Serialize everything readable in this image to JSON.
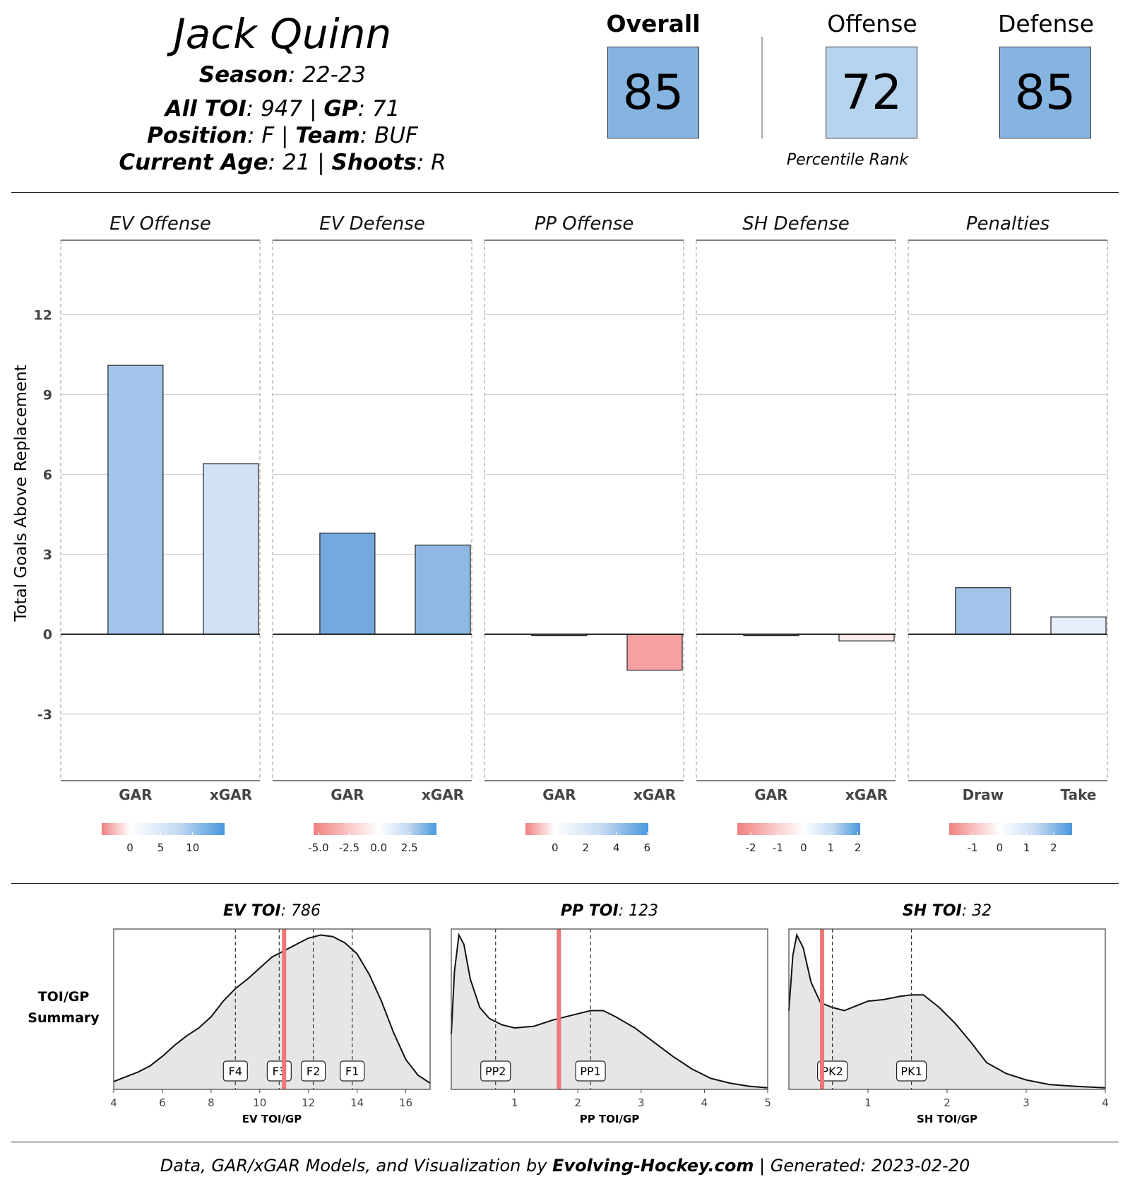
{
  "player": {
    "name": "Jack Quinn",
    "season_label": "Season",
    "season": ": 22-23",
    "toi_label": "All TOI",
    "toi": ": 947 | ",
    "gp_label": "GP",
    "gp": ": 71",
    "position_label": "Position",
    "position": ": F | ",
    "team_label": "Team",
    "team": ": BUF",
    "age_label": "Current Age",
    "age": ": 21 | ",
    "shoots_label": "Shoots",
    "shoots": ": R"
  },
  "ratings": {
    "overall": {
      "label": "Overall",
      "value": "85",
      "color": "#86b4e0"
    },
    "offense": {
      "label": "Offense",
      "value": "72",
      "color": "#b6d4ee"
    },
    "defense": {
      "label": "Defense",
      "value": "85",
      "color": "#86b4e0"
    },
    "note": "Percentile Rank"
  },
  "ylabel": "Total Goals Above Replacement",
  "toi_summary_label": "TOI/GP Summary",
  "footer": {
    "prefix": "Data, GAR/xGAR Models, and Visualization by ",
    "site": "Evolving-Hockey.com",
    "suffix": "  | Generated: 2023-02-20"
  },
  "chart_data": [
    {
      "type": "bar",
      "ylim": [
        -5.5,
        14.8
      ],
      "yticks": [
        -3,
        0,
        3,
        6,
        9,
        12
      ],
      "grid": true,
      "panels": [
        {
          "title": "EV Offense",
          "categories": [
            "GAR",
            "xGAR"
          ],
          "values": [
            10.1,
            6.4
          ],
          "colors": [
            "#a2c4ea",
            "#d2e2f5"
          ],
          "scale_ticks": [
            "0",
            "5",
            "10"
          ],
          "scale_tick_fracs": [
            0.23,
            0.48,
            0.74
          ],
          "scale_zero": 0.23
        },
        {
          "title": "EV Defense",
          "categories": [
            "GAR",
            "xGAR"
          ],
          "values": [
            3.8,
            3.35
          ],
          "colors": [
            "#75a9de",
            "#8fb8e4"
          ],
          "scale_ticks": [
            "-5.0",
            "-2.5",
            "0.0",
            "2.5"
          ],
          "scale_tick_fracs": [
            0.04,
            0.29,
            0.53,
            0.78
          ],
          "scale_zero": 0.53
        },
        {
          "title": "PP Offense",
          "categories": [
            "GAR",
            "xGAR"
          ],
          "values": [
            -0.05,
            -1.35
          ],
          "colors": [
            "#fff7f7",
            "#f6a1a1"
          ],
          "scale_ticks": [
            "0",
            "2",
            "4",
            "6"
          ],
          "scale_tick_fracs": [
            0.24,
            0.49,
            0.74,
            0.99
          ],
          "scale_zero": 0.24
        },
        {
          "title": "SH Defense",
          "categories": [
            "GAR",
            "xGAR"
          ],
          "values": [
            -0.05,
            -0.25
          ],
          "colors": [
            "#fff8f8",
            "#fdeaea"
          ],
          "scale_ticks": [
            "-2",
            "-1",
            "0",
            "1",
            "2"
          ],
          "scale_tick_fracs": [
            0.11,
            0.33,
            0.54,
            0.76,
            0.98
          ],
          "scale_zero": 0.54
        },
        {
          "title": "Penalties",
          "categories": [
            "Draw",
            "Take"
          ],
          "values": [
            1.75,
            0.65
          ],
          "colors": [
            "#a2c4ea",
            "#e6eefb"
          ],
          "scale_ticks": [
            "-1",
            "0",
            "1",
            "2"
          ],
          "scale_tick_fracs": [
            0.19,
            0.41,
            0.63,
            0.85
          ],
          "scale_zero": 0.41
        }
      ]
    },
    {
      "type": "area",
      "panels": [
        {
          "title_bold": "EV TOI",
          "title_rest": ": 786",
          "xlabel": "EV TOI/GP",
          "xlim": [
            4,
            17
          ],
          "xticks": [
            4,
            6,
            8,
            10,
            12,
            14,
            16
          ],
          "density_x": [
            4,
            4.5,
            5,
            5.5,
            6,
            6.5,
            7,
            7.5,
            8,
            8.5,
            9,
            9.5,
            10,
            10.5,
            11,
            11.5,
            12,
            12.5,
            13,
            13.5,
            14,
            14.5,
            15,
            15.5,
            16,
            16.5,
            17
          ],
          "density_y": [
            0.05,
            0.08,
            0.11,
            0.15,
            0.21,
            0.28,
            0.34,
            0.39,
            0.46,
            0.56,
            0.64,
            0.7,
            0.77,
            0.84,
            0.88,
            0.92,
            0.96,
            0.98,
            0.97,
            0.93,
            0.86,
            0.73,
            0.56,
            0.36,
            0.19,
            0.09,
            0.04
          ],
          "ylim": [
            0,
            1
          ],
          "markers": [
            {
              "label": "F4",
              "x": 9
            },
            {
              "label": "F3",
              "x": 10.8
            },
            {
              "label": "F2",
              "x": 12.2
            },
            {
              "label": "F1",
              "x": 13.8
            }
          ],
          "player_value": 11
        },
        {
          "title_bold": "PP TOI",
          "title_rest": ": 123",
          "xlabel": "PP TOI/GP",
          "xlim": [
            0,
            5
          ],
          "xticks": [
            1,
            2,
            3,
            4,
            5
          ],
          "density_x": [
            0,
            0.05,
            0.12,
            0.2,
            0.3,
            0.45,
            0.6,
            0.8,
            1.0,
            1.3,
            1.6,
            1.9,
            2.2,
            2.4,
            2.6,
            2.9,
            3.2,
            3.5,
            3.8,
            4.1,
            4.4,
            4.7,
            5
          ],
          "density_y": [
            0.35,
            0.75,
            0.98,
            0.92,
            0.7,
            0.52,
            0.45,
            0.41,
            0.39,
            0.4,
            0.44,
            0.47,
            0.5,
            0.5,
            0.46,
            0.39,
            0.3,
            0.21,
            0.13,
            0.07,
            0.04,
            0.02,
            0.01
          ],
          "ylim": [
            0,
            1
          ],
          "markers": [
            {
              "label": "PP2",
              "x": 0.7
            },
            {
              "label": "PP1",
              "x": 2.2
            }
          ],
          "player_value": 1.7
        },
        {
          "title_bold": "SH TOI",
          "title_rest": ": 32",
          "xlabel": "SH TOI/GP",
          "xlim": [
            0,
            4
          ],
          "xticks": [
            1,
            2,
            3,
            4
          ],
          "density_x": [
            0,
            0.05,
            0.1,
            0.18,
            0.28,
            0.4,
            0.55,
            0.7,
            0.85,
            1.0,
            1.2,
            1.4,
            1.55,
            1.7,
            1.9,
            2.1,
            2.3,
            2.5,
            2.75,
            3.0,
            3.3,
            3.6,
            4
          ],
          "density_y": [
            0.5,
            0.85,
            0.98,
            0.9,
            0.68,
            0.55,
            0.52,
            0.5,
            0.53,
            0.56,
            0.57,
            0.59,
            0.6,
            0.6,
            0.52,
            0.42,
            0.3,
            0.17,
            0.1,
            0.06,
            0.03,
            0.02,
            0.01
          ],
          "ylim": [
            0,
            1
          ],
          "markers": [
            {
              "label": "PK2",
              "x": 0.55
            },
            {
              "label": "PK1",
              "x": 1.55
            }
          ],
          "player_value": 0.42
        }
      ]
    }
  ]
}
